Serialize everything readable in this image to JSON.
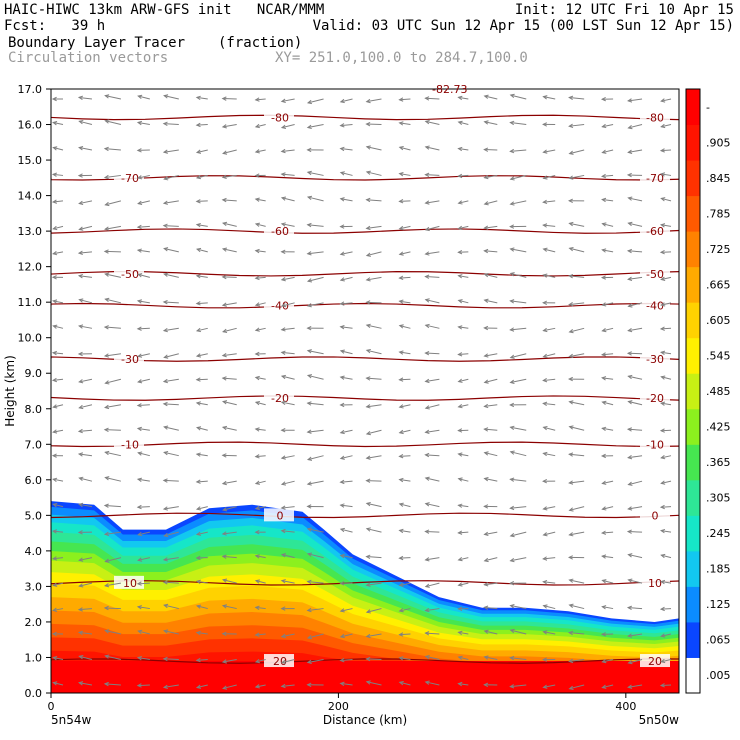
{
  "header": {
    "line1_left": "HAIC-HIWC 13km ARW-GFS init   NCAR/MMM",
    "line1_right": "Init: 12 UTC Fri 10 Apr 15",
    "fcst_label": "Fcst:   39 h",
    "valid": "Valid: 03 UTC Sun 12 Apr 15 (00 LST Sun 12 Apr 15)",
    "field_name": "Boundary Layer Tracer",
    "field_units": "(fraction)",
    "vector_name": "Circulation vectors",
    "xy_range": "XY= 251.0,100.0 to 284.7,100.0"
  },
  "chart_data": {
    "type": "heatmap",
    "title": "Boundary Layer Tracer (fraction)",
    "xlabel": "Distance (km)",
    "ylabel": "Height (km)",
    "xlim": [
      0,
      437
    ],
    "ylim": [
      0,
      17
    ],
    "x_ticks": [
      "0",
      "200",
      "400"
    ],
    "y_ticks": [
      "0.0",
      "1.0",
      "2.0",
      "3.0",
      "4.0",
      "5.0",
      "6.0",
      "7.0",
      "8.0",
      "9.0",
      "10.0",
      "11.0",
      "12.0",
      "13.0",
      "14.0",
      "15.0",
      "16.0",
      "17.0"
    ],
    "x_endpoint_labels": {
      "left": "5n54w",
      "right": "5n50w"
    },
    "colorbar": {
      "labels": [
        ".005",
        ".065",
        ".125",
        ".185",
        ".245",
        ".305",
        ".365",
        ".425",
        ".485",
        ".545",
        ".605",
        ".665",
        ".725",
        ".785",
        ".845",
        ".905",
        "-"
      ],
      "colors": [
        "#ffffff",
        "#0a46ff",
        "#0b8cff",
        "#12c8f0",
        "#16e6c8",
        "#2ee696",
        "#46e650",
        "#8cf01e",
        "#c8f014",
        "#fff000",
        "#ffd200",
        "#ffaa00",
        "#ff8200",
        "#ff5a00",
        "#ff3200",
        "#ff1400",
        "#ff0000"
      ]
    },
    "tracer_top_km": {
      "x": [
        0,
        30,
        50,
        80,
        110,
        140,
        175,
        190,
        210,
        240,
        270,
        300,
        330,
        360,
        390,
        420,
        437
      ],
      "y": [
        5.4,
        5.3,
        4.6,
        4.6,
        5.2,
        5.3,
        5.1,
        4.6,
        3.9,
        3.3,
        2.7,
        2.4,
        2.4,
        2.3,
        2.1,
        2.0,
        2.1
      ]
    },
    "temperature_isotherms_C": [
      {
        "label": "-80",
        "y_km": 16.2
      },
      {
        "label": "-70",
        "y_km": 14.5
      },
      {
        "label": "-60",
        "y_km": 13.0
      },
      {
        "label": "-50",
        "y_km": 11.8
      },
      {
        "label": "-40",
        "y_km": 10.9
      },
      {
        "label": "-30",
        "y_km": 9.4
      },
      {
        "label": "-20",
        "y_km": 8.3
      },
      {
        "label": "-10",
        "y_km": 7.0
      },
      {
        "label": "0",
        "y_km": 5.0
      },
      {
        "label": "10",
        "y_km": 3.1
      },
      {
        "label": "20",
        "y_km": 0.9
      }
    ],
    "top_label": "-82.73"
  }
}
